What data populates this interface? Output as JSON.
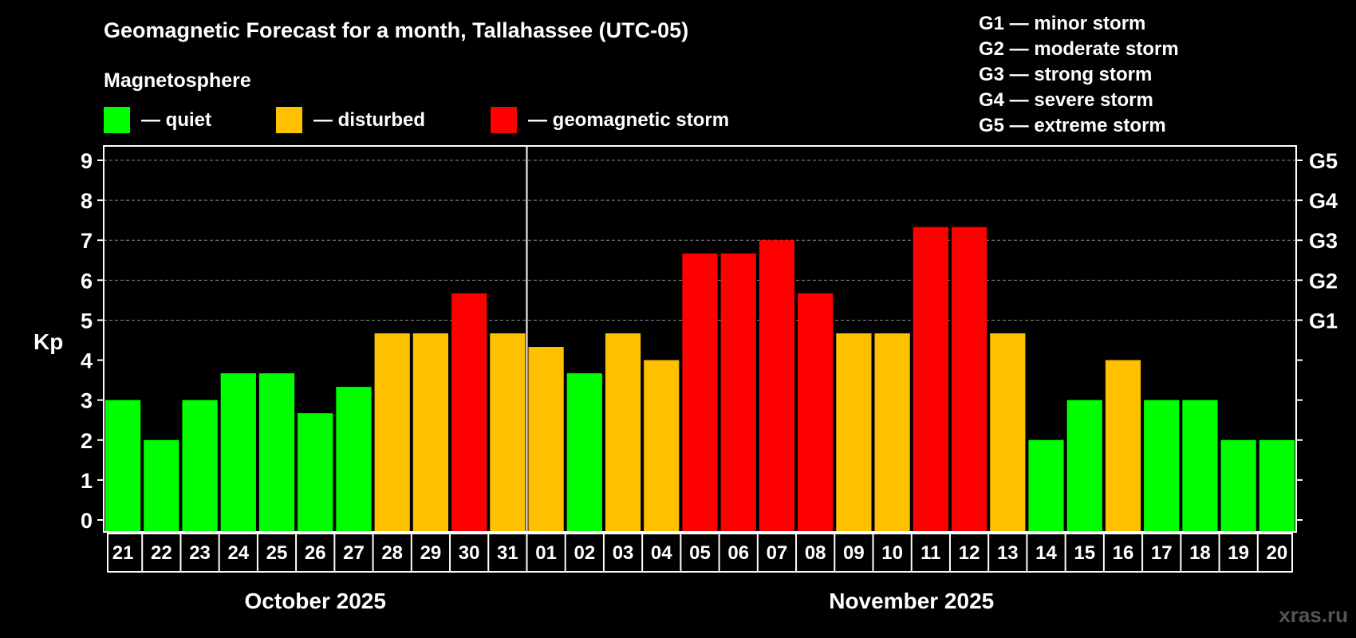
{
  "title": "Geomagnetic Forecast for a month, Tallahassee (UTC-05)",
  "legend": {
    "heading": "Magnetosphere",
    "items": [
      {
        "label": "— quiet",
        "color": "#00ff00"
      },
      {
        "label": "— disturbed",
        "color": "#ffc000"
      },
      {
        "label": "— geomagnetic storm",
        "color": "#ff0000"
      }
    ]
  },
  "storm_scale": [
    "G1 — minor storm",
    "G2 — moderate storm",
    "G3 — strong storm",
    "G4 — severe storm",
    "G5 — extreme storm"
  ],
  "watermark": "xras.ru",
  "chart_data": {
    "type": "bar",
    "title": "Geomagnetic Forecast for a month, Tallahassee (UTC-05)",
    "ylabel": "Kp",
    "ylim": [
      0,
      9
    ],
    "yticks": [
      0,
      1,
      2,
      3,
      4,
      5,
      6,
      7,
      8,
      9
    ],
    "grid": "dashed horizontal",
    "right_axis": [
      {
        "kp": 5,
        "label": "G1"
      },
      {
        "kp": 6,
        "label": "G2"
      },
      {
        "kp": 7,
        "label": "G3"
      },
      {
        "kp": 8,
        "label": "G4"
      },
      {
        "kp": 9,
        "label": "G5"
      }
    ],
    "months": [
      {
        "label": "October 2025",
        "days": 11
      },
      {
        "label": "November 2025",
        "days": 20
      }
    ],
    "categories": [
      "21",
      "22",
      "23",
      "24",
      "25",
      "26",
      "27",
      "28",
      "29",
      "30",
      "31",
      "01",
      "02",
      "03",
      "04",
      "05",
      "06",
      "07",
      "08",
      "09",
      "10",
      "11",
      "12",
      "13",
      "14",
      "15",
      "16",
      "17",
      "18",
      "19",
      "20"
    ],
    "values": [
      3,
      2,
      3,
      3.67,
      3.67,
      2.67,
      3.33,
      4.67,
      4.67,
      5.67,
      4.67,
      4.33,
      3.67,
      4.67,
      4,
      6.67,
      6.67,
      7,
      5.67,
      4.67,
      4.67,
      7.33,
      7.33,
      4.67,
      2,
      3,
      4,
      3,
      3,
      2,
      2
    ],
    "colors": {
      "quiet": "#00ff00",
      "disturbed": "#ffc000",
      "storm": "#ff0000"
    }
  }
}
